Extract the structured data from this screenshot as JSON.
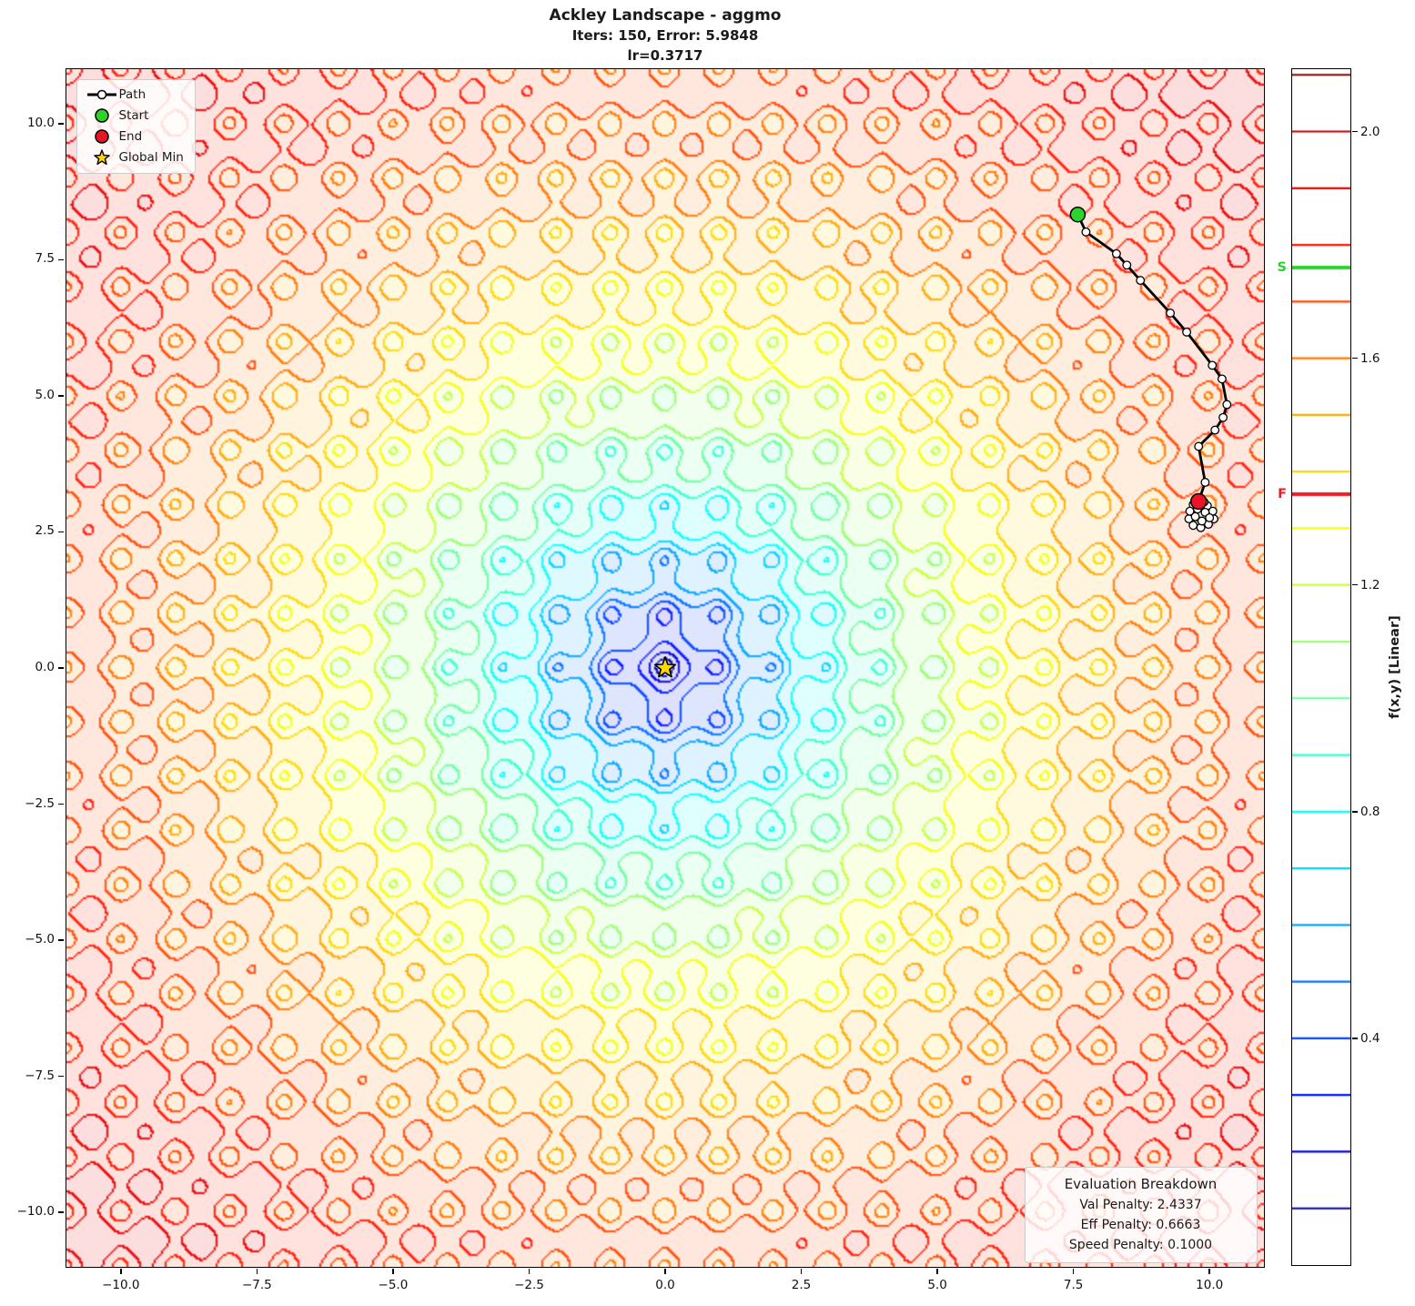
{
  "title": {
    "line1": "Ackley Landscape - aggmo",
    "line2": "Iters: 150, Error: 5.9848",
    "line3": "lr=0.3717"
  },
  "legend": {
    "path_label": "Path",
    "start_label": "Start",
    "end_label": "End",
    "global_min_label": "Global Min"
  },
  "eval_box": {
    "title": "Evaluation Breakdown",
    "val": "Val Penalty: 2.4337",
    "eff": "Eff Penalty: 0.6663",
    "speed": "Speed Penalty: 0.1000"
  },
  "colors": {
    "start": "#2bd42b",
    "end": "#e91526",
    "star": "#ffd700",
    "path": "#000000",
    "marker_face": "#ffffff"
  },
  "colorbar": {
    "label": "f(x,y) [Linear]",
    "tick_values": [
      2.0,
      1.6,
      1.2,
      0.8,
      0.4
    ],
    "tick_labels": [
      "2.0",
      "1.6",
      "1.2",
      "0.8",
      "0.4"
    ],
    "vmin": 0.0,
    "vmax": 2.11,
    "start_marker": {
      "label": "S",
      "value": 1.76,
      "color": "#2bd42b"
    },
    "end_marker": {
      "label": "F",
      "value": 1.36,
      "color": "#ed1c24"
    }
  },
  "chart_data": {
    "type": "contour",
    "title": "Ackley Landscape - aggmo",
    "function": "ackley_scaled",
    "formula": "f(x,y) = ( -20*exp(-0.2*sqrt(0.5*(x^2+y^2))) - exp(0.5*(cos(2*pi*x)+cos(2*pi*y))) + 20 + e ) / 10",
    "x_range": [
      -11,
      11
    ],
    "y_range": [
      -11,
      11
    ],
    "x_ticks": [
      -10,
      -7.5,
      -5,
      -2.5,
      0,
      2.5,
      5,
      7.5,
      10
    ],
    "x_tick_labels": [
      "−10.0",
      "−7.5",
      "−5.0",
      "−2.5",
      "0.0",
      "2.5",
      "5.0",
      "7.5",
      "10.0"
    ],
    "y_ticks": [
      10,
      7.5,
      5,
      2.5,
      0,
      -2.5,
      -5,
      -7.5,
      -10
    ],
    "y_tick_labels": [
      "10.0",
      "7.5",
      "5.0",
      "2.5",
      "0.0",
      "−2.5",
      "−5.0",
      "−7.5",
      "−10.0"
    ],
    "levels": {
      "start": 0.1,
      "end": 2.1,
      "step": 0.1
    },
    "colormap": "jet",
    "grid": false,
    "legend_position": "upper left",
    "start_point": [
      7.58,
      8.33
    ],
    "end_point": [
      9.8,
      3.06
    ],
    "global_min": [
      0,
      0
    ],
    "path_points": [
      [
        7.58,
        8.33
      ],
      [
        7.73,
        8.01
      ],
      [
        8.29,
        7.61
      ],
      [
        8.48,
        7.4
      ],
      [
        8.73,
        7.12
      ],
      [
        9.28,
        6.52
      ],
      [
        9.58,
        6.17
      ],
      [
        10.05,
        5.56
      ],
      [
        10.23,
        5.31
      ],
      [
        10.32,
        4.84
      ],
      [
        10.25,
        4.6
      ],
      [
        10.1,
        4.37
      ],
      [
        9.8,
        4.07
      ],
      [
        9.92,
        3.41
      ]
    ],
    "end_cluster": [
      [
        9.7,
        3.0
      ],
      [
        9.83,
        3.02
      ],
      [
        9.96,
        2.98
      ],
      [
        10.06,
        2.88
      ],
      [
        10.08,
        2.74
      ],
      [
        9.98,
        2.64
      ],
      [
        9.84,
        2.58
      ],
      [
        9.7,
        2.62
      ],
      [
        9.62,
        2.74
      ],
      [
        9.64,
        2.88
      ],
      [
        9.78,
        2.92
      ],
      [
        9.92,
        2.86
      ],
      [
        10.0,
        2.76
      ],
      [
        9.86,
        2.7
      ],
      [
        9.74,
        2.78
      ],
      [
        9.9,
        3.05
      ]
    ]
  }
}
